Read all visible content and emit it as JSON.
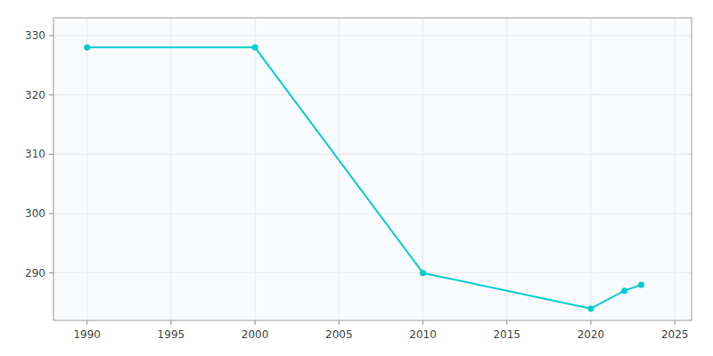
{
  "chart_data": {
    "type": "line",
    "x": [
      1990,
      2000,
      2010,
      2020,
      2022,
      2023
    ],
    "values": [
      328,
      328,
      290,
      284,
      287,
      288
    ],
    "color": "#00CED1",
    "marker": "circle",
    "xlim": [
      1988,
      2026
    ],
    "ylim": [
      282,
      333
    ],
    "xticks": [
      1990,
      1995,
      2000,
      2005,
      2010,
      2015,
      2020,
      2025
    ],
    "yticks": [
      290,
      300,
      310,
      320,
      330
    ],
    "grid": true
  }
}
